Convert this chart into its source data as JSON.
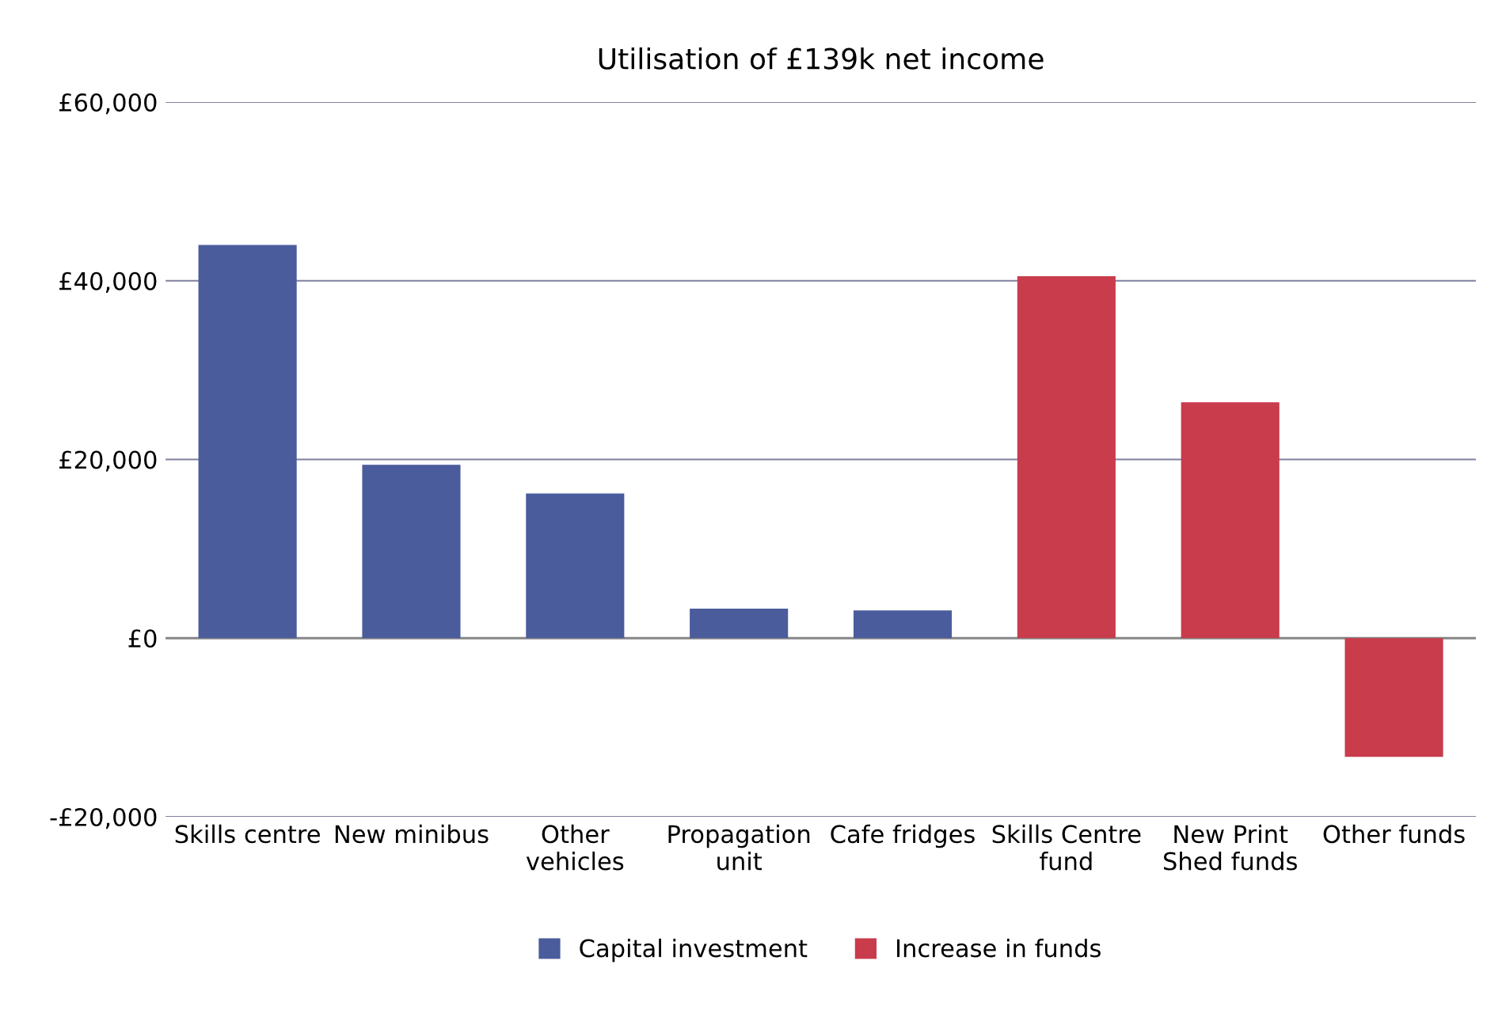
{
  "chart_data": {
    "type": "bar",
    "title": "Utilisation of £139k net income",
    "categories": [
      "Skills centre",
      "New minibus",
      "Other\nvehicles",
      "Propagation\nunit",
      "Cafe fridges",
      "Skills Centre\nfund",
      "New Print\nShed funds",
      "Other funds"
    ],
    "series": [
      {
        "name": "Capital investment",
        "color": "#4a5c9c",
        "values": [
          44000,
          19400,
          16200,
          3300,
          3100,
          null,
          null,
          null
        ]
      },
      {
        "name": "Increase in funds",
        "color": "#c83c4c",
        "values": [
          null,
          null,
          null,
          null,
          null,
          40500,
          26400,
          -13300
        ]
      }
    ],
    "stacked": true,
    "ylim": [
      -20000,
      60000
    ],
    "yticks": [
      {
        "value": -20000,
        "label": "-£20,000"
      },
      {
        "value": 0,
        "label": "£0"
      },
      {
        "value": 20000,
        "label": "£20,000"
      },
      {
        "value": 40000,
        "label": "£40,000"
      },
      {
        "value": 60000,
        "label": "£60,000"
      }
    ],
    "grid": "y",
    "legend": "bottom"
  }
}
